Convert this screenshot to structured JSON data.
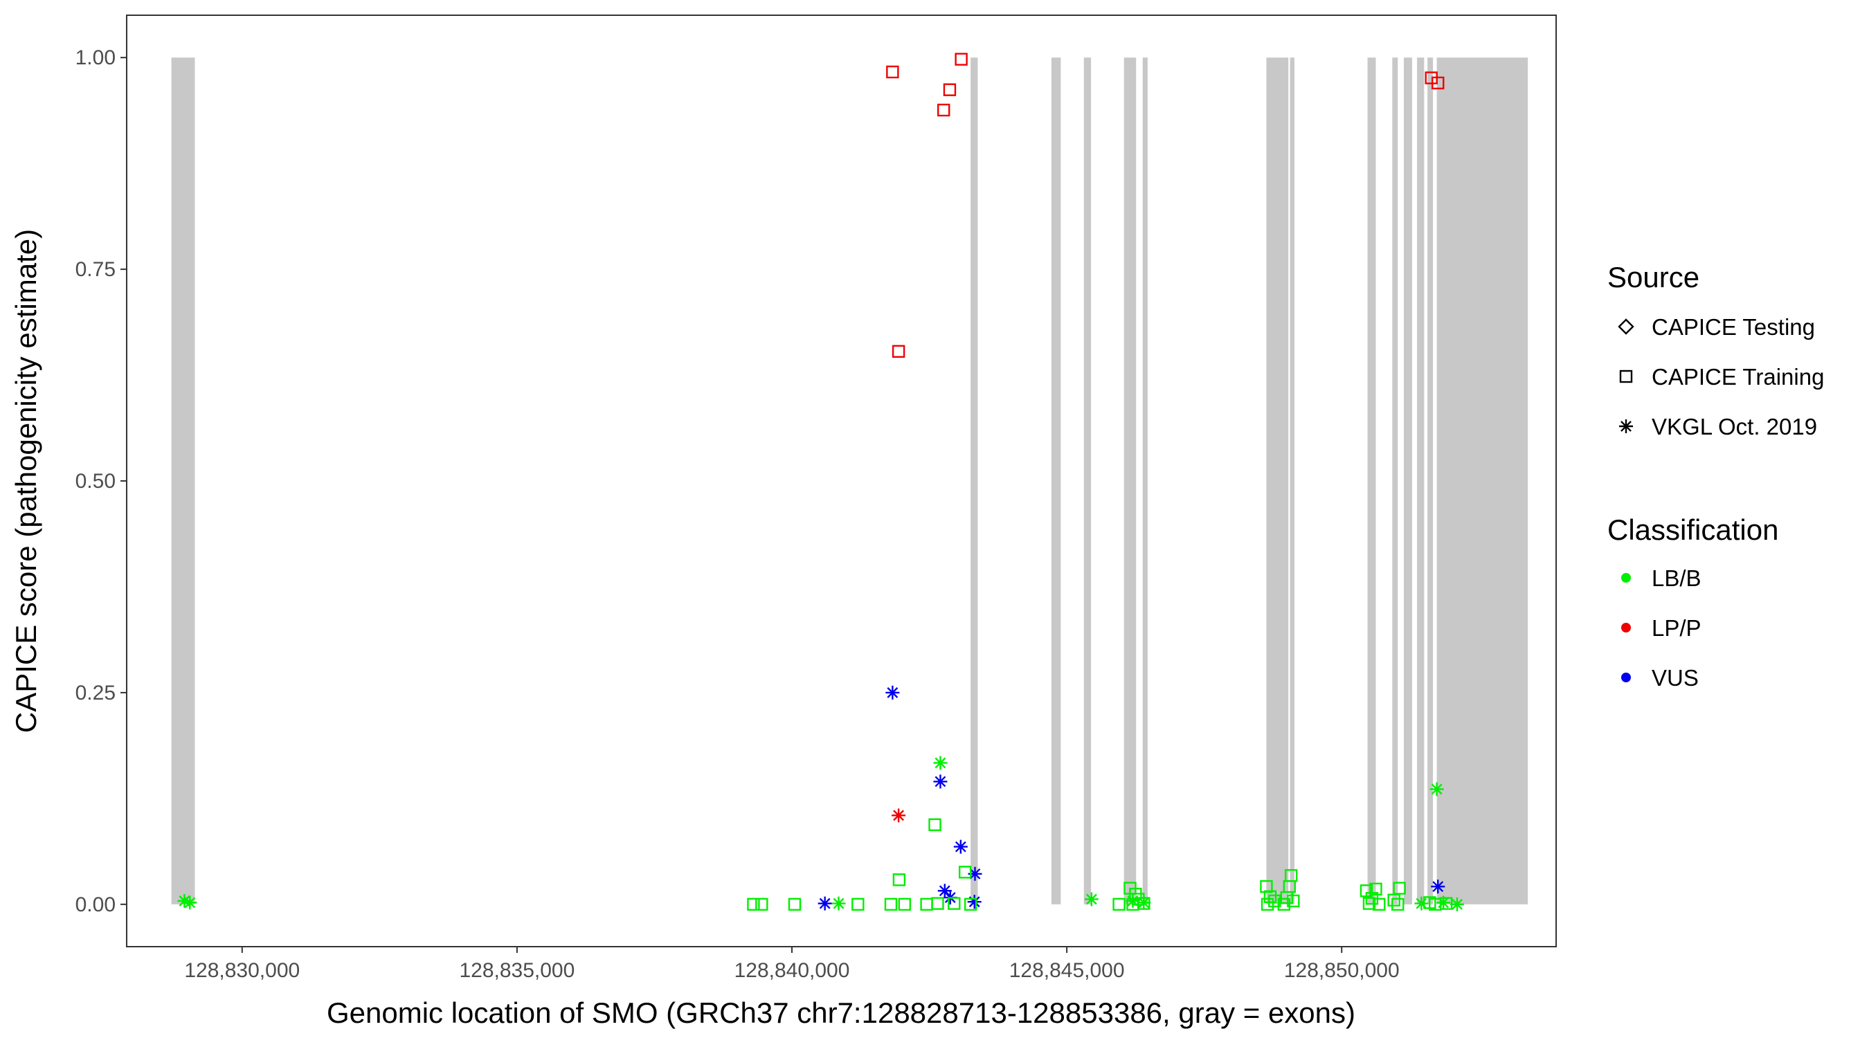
{
  "chart_data": {
    "type": "scatter",
    "xlabel": "Genomic location of SMO (GRCh37 chr7:128828713-128853386, gray = exons)",
    "ylabel": "CAPICE score (pathogenicity estimate)",
    "xlim": [
      128827900,
      128853900
    ],
    "ylim": [
      -0.05,
      1.05
    ],
    "x_ticks": [
      {
        "value": 128830000,
        "label": "128,830,000"
      },
      {
        "value": 128835000,
        "label": "128,835,000"
      },
      {
        "value": 128840000,
        "label": "128,840,000"
      },
      {
        "value": 128845000,
        "label": "128,845,000"
      },
      {
        "value": 128850000,
        "label": "128,850,000"
      }
    ],
    "y_ticks": [
      {
        "value": 0,
        "label": "0.00"
      },
      {
        "value": 0.25,
        "label": "0.25"
      },
      {
        "value": 0.5,
        "label": "0.50"
      },
      {
        "value": 0.75,
        "label": "0.75"
      },
      {
        "value": 1,
        "label": "1.00"
      }
    ],
    "grid": false,
    "exons": [
      [
        128828713,
        128829140
      ],
      [
        128843250,
        128843380
      ],
      [
        128844720,
        128844890
      ],
      [
        128845310,
        128845440
      ],
      [
        128846040,
        128846260
      ],
      [
        128846380,
        128846470
      ],
      [
        128848630,
        128849030
      ],
      [
        128849060,
        128849140
      ],
      [
        128850470,
        128850620
      ],
      [
        128850920,
        128851020
      ],
      [
        128851130,
        128851280
      ],
      [
        128851370,
        128851500
      ],
      [
        128851560,
        128851660
      ],
      [
        128851730,
        128853386
      ]
    ],
    "legend": {
      "placement": "right",
      "source_title": "Source",
      "source_items": [
        {
          "label": "CAPICE Testing",
          "shape": "diamond"
        },
        {
          "label": "CAPICE Training",
          "shape": "square"
        },
        {
          "label": "VKGL Oct. 2019",
          "shape": "asterisk"
        }
      ],
      "class_title": "Classification",
      "class_items": [
        {
          "label": "LB/B",
          "color": "#00ee00"
        },
        {
          "label": "LP/P",
          "color": "#ee0000"
        },
        {
          "label": "VUS",
          "color": "#0000ee"
        }
      ]
    },
    "colors": {
      "LB/B": "#00ee00",
      "LP/P": "#ee0000",
      "VUS": "#0000ee",
      "exon": "#c8c8c8"
    },
    "points": [
      {
        "x": 128841830,
        "y": 0.983,
        "source": "CAPICE Training",
        "class": "LP/P"
      },
      {
        "x": 128843080,
        "y": 0.998,
        "source": "CAPICE Training",
        "class": "LP/P"
      },
      {
        "x": 128842870,
        "y": 0.962,
        "source": "CAPICE Training",
        "class": "LP/P"
      },
      {
        "x": 128842760,
        "y": 0.938,
        "source": "CAPICE Training",
        "class": "LP/P"
      },
      {
        "x": 128841940,
        "y": 0.653,
        "source": "CAPICE Training",
        "class": "LP/P"
      },
      {
        "x": 128851630,
        "y": 0.976,
        "source": "CAPICE Training",
        "class": "LP/P"
      },
      {
        "x": 128851750,
        "y": 0.97,
        "source": "CAPICE Training",
        "class": "LP/P"
      },
      {
        "x": 128841830,
        "y": 0.25,
        "source": "VKGL Oct. 2019",
        "class": "VUS"
      },
      {
        "x": 128842700,
        "y": 0.145,
        "source": "VKGL Oct. 2019",
        "class": "VUS"
      },
      {
        "x": 128843070,
        "y": 0.068,
        "source": "VKGL Oct. 2019",
        "class": "VUS"
      },
      {
        "x": 128843330,
        "y": 0.036,
        "source": "VKGL Oct. 2019",
        "class": "VUS"
      },
      {
        "x": 128842780,
        "y": 0.016,
        "source": "VKGL Oct. 2019",
        "class": "VUS"
      },
      {
        "x": 128842880,
        "y": 0.008,
        "source": "VKGL Oct. 2019",
        "class": "VUS"
      },
      {
        "x": 128843320,
        "y": 0.003,
        "source": "VKGL Oct. 2019",
        "class": "VUS"
      },
      {
        "x": 128840600,
        "y": 0.001,
        "source": "VKGL Oct. 2019",
        "class": "VUS"
      },
      {
        "x": 128851750,
        "y": 0.021,
        "source": "VKGL Oct. 2019",
        "class": "VUS"
      },
      {
        "x": 128841940,
        "y": 0.105,
        "source": "VKGL Oct. 2019",
        "class": "LP/P"
      },
      {
        "x": 128842700,
        "y": 0.167,
        "source": "VKGL Oct. 2019",
        "class": "LB/B"
      },
      {
        "x": 128851730,
        "y": 0.136,
        "source": "VKGL Oct. 2019",
        "class": "LB/B"
      },
      {
        "x": 128828950,
        "y": 0.004,
        "source": "VKGL Oct. 2019",
        "class": "LB/B"
      },
      {
        "x": 128829050,
        "y": 0.002,
        "source": "VKGL Oct. 2019",
        "class": "LB/B"
      },
      {
        "x": 128840850,
        "y": 0.001,
        "source": "VKGL Oct. 2019",
        "class": "LB/B"
      },
      {
        "x": 128845450,
        "y": 0.006,
        "source": "VKGL Oct. 2019",
        "class": "LB/B"
      },
      {
        "x": 128846200,
        "y": 0.004,
        "source": "VKGL Oct. 2019",
        "class": "LB/B"
      },
      {
        "x": 128846400,
        "y": 0.002,
        "source": "VKGL Oct. 2019",
        "class": "LB/B"
      },
      {
        "x": 128851450,
        "y": 0.001,
        "source": "VKGL Oct. 2019",
        "class": "LB/B"
      },
      {
        "x": 128851850,
        "y": 0.002,
        "source": "VKGL Oct. 2019",
        "class": "LB/B"
      },
      {
        "x": 128852100,
        "y": 0.0,
        "source": "VKGL Oct. 2019",
        "class": "LB/B"
      },
      {
        "x": 128842600,
        "y": 0.094,
        "source": "CAPICE Training",
        "class": "LB/B"
      },
      {
        "x": 128843150,
        "y": 0.038,
        "source": "CAPICE Training",
        "class": "LB/B"
      },
      {
        "x": 128841950,
        "y": 0.029,
        "source": "CAPICE Training",
        "class": "LB/B"
      },
      {
        "x": 128839300,
        "y": 0.0,
        "source": "CAPICE Training",
        "class": "LB/B"
      },
      {
        "x": 128839450,
        "y": 0.0,
        "source": "CAPICE Training",
        "class": "LB/B"
      },
      {
        "x": 128840050,
        "y": 0.0,
        "source": "CAPICE Training",
        "class": "LB/B"
      },
      {
        "x": 128841200,
        "y": 0.0,
        "source": "CAPICE Training",
        "class": "LB/B"
      },
      {
        "x": 128841800,
        "y": 0.0,
        "source": "CAPICE Training",
        "class": "LB/B"
      },
      {
        "x": 128842050,
        "y": 0.0,
        "source": "CAPICE Training",
        "class": "LB/B"
      },
      {
        "x": 128842450,
        "y": 0.0,
        "source": "CAPICE Training",
        "class": "LB/B"
      },
      {
        "x": 128842650,
        "y": 0.001,
        "source": "CAPICE Training",
        "class": "LB/B"
      },
      {
        "x": 128842950,
        "y": 0.001,
        "source": "CAPICE Training",
        "class": "LB/B"
      },
      {
        "x": 128843250,
        "y": 0.0,
        "source": "CAPICE Training",
        "class": "LB/B"
      },
      {
        "x": 128845950,
        "y": 0.0,
        "source": "CAPICE Training",
        "class": "LB/B"
      },
      {
        "x": 128846150,
        "y": 0.019,
        "source": "CAPICE Training",
        "class": "LB/B"
      },
      {
        "x": 128846250,
        "y": 0.012,
        "source": "CAPICE Training",
        "class": "LB/B"
      },
      {
        "x": 128846300,
        "y": 0.006,
        "source": "CAPICE Training",
        "class": "LB/B"
      },
      {
        "x": 128846400,
        "y": 0.001,
        "source": "CAPICE Training",
        "class": "LB/B"
      },
      {
        "x": 128846200,
        "y": 0.0,
        "source": "CAPICE Training",
        "class": "LB/B"
      },
      {
        "x": 128848630,
        "y": 0.021,
        "source": "CAPICE Training",
        "class": "LB/B"
      },
      {
        "x": 128848700,
        "y": 0.009,
        "source": "CAPICE Training",
        "class": "LB/B"
      },
      {
        "x": 128848780,
        "y": 0.004,
        "source": "CAPICE Training",
        "class": "LB/B"
      },
      {
        "x": 128848650,
        "y": 0.0,
        "source": "CAPICE Training",
        "class": "LB/B"
      },
      {
        "x": 128849080,
        "y": 0.034,
        "source": "CAPICE Training",
        "class": "LB/B"
      },
      {
        "x": 128849050,
        "y": 0.021,
        "source": "CAPICE Training",
        "class": "LB/B"
      },
      {
        "x": 128849000,
        "y": 0.008,
        "source": "CAPICE Training",
        "class": "LB/B"
      },
      {
        "x": 128849120,
        "y": 0.004,
        "source": "CAPICE Training",
        "class": "LB/B"
      },
      {
        "x": 128848950,
        "y": 0.0,
        "source": "CAPICE Training",
        "class": "LB/B"
      },
      {
        "x": 128850450,
        "y": 0.016,
        "source": "CAPICE Training",
        "class": "LB/B"
      },
      {
        "x": 128850620,
        "y": 0.018,
        "source": "CAPICE Training",
        "class": "LB/B"
      },
      {
        "x": 128850550,
        "y": 0.007,
        "source": "CAPICE Training",
        "class": "LB/B"
      },
      {
        "x": 128850500,
        "y": 0.001,
        "source": "CAPICE Training",
        "class": "LB/B"
      },
      {
        "x": 128850680,
        "y": 0.0,
        "source": "CAPICE Training",
        "class": "LB/B"
      },
      {
        "x": 128851050,
        "y": 0.019,
        "source": "CAPICE Training",
        "class": "LB/B"
      },
      {
        "x": 128850950,
        "y": 0.005,
        "source": "CAPICE Training",
        "class": "LB/B"
      },
      {
        "x": 128851020,
        "y": 0.0,
        "source": "CAPICE Training",
        "class": "LB/B"
      },
      {
        "x": 128851600,
        "y": 0.002,
        "source": "CAPICE Training",
        "class": "LB/B"
      },
      {
        "x": 128851700,
        "y": 0.0,
        "source": "CAPICE Training",
        "class": "LB/B"
      },
      {
        "x": 128851900,
        "y": 0.001,
        "source": "CAPICE Training",
        "class": "LB/B"
      }
    ]
  }
}
